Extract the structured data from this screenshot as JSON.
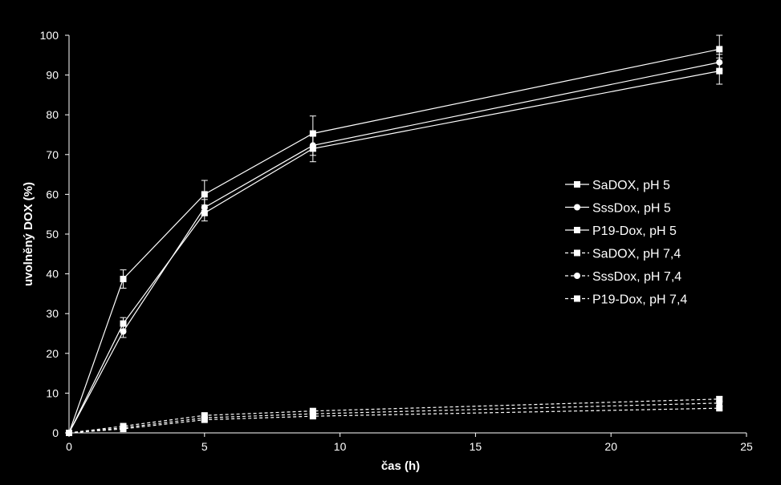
{
  "chart_data": {
    "type": "line",
    "title": "",
    "xlabel": "čas (h)",
    "ylabel": "uvolněný DOX (%)",
    "xlim": [
      0,
      25
    ],
    "ylim": [
      0,
      100
    ],
    "xticks": [
      0,
      5,
      10,
      15,
      20,
      25
    ],
    "yticks": [
      0,
      10,
      20,
      30,
      40,
      50,
      60,
      70,
      80,
      90,
      100
    ],
    "grid": false,
    "legend_position": "right",
    "colors": {
      "background": "#000000",
      "foreground": "#ffffff"
    },
    "x": [
      0,
      2,
      5,
      9,
      24
    ],
    "series": [
      {
        "name": "SaDOX, pH 5",
        "values": [
          0,
          38.7,
          60.0,
          75.3,
          96.5
        ],
        "error": [
          0,
          2.3,
          3.5,
          4.4,
          3.5
        ],
        "marker": "square",
        "dash": "solid"
      },
      {
        "name": "SssDox, pH 5",
        "values": [
          0,
          25.5,
          56.7,
          72.3,
          93.2
        ],
        "error": [
          0,
          1.5,
          2.0,
          2.5,
          2.0
        ],
        "marker": "circle",
        "dash": "solid"
      },
      {
        "name": "P19-Dox, pH 5",
        "values": [
          0,
          27.5,
          55.3,
          71.5,
          91.0
        ],
        "error": [
          0,
          1.5,
          2.0,
          3.3,
          3.3
        ],
        "marker": "square",
        "dash": "solid"
      },
      {
        "name": "SaDOX, pH 7,4",
        "values": [
          0,
          1.7,
          4.4,
          5.5,
          8.5
        ],
        "error": [
          0,
          0.3,
          0.4,
          0.5,
          0.6
        ],
        "marker": "square",
        "dash": "dashed"
      },
      {
        "name": "SssDox, pH 7,4",
        "values": [
          0,
          1.3,
          3.8,
          4.8,
          7.5
        ],
        "error": [
          0,
          0.3,
          0.4,
          0.4,
          0.5
        ],
        "marker": "circle",
        "dash": "dashed"
      },
      {
        "name": "P19-Dox, pH 7,4",
        "values": [
          0,
          1.0,
          3.3,
          4.2,
          6.2
        ],
        "error": [
          0,
          0.3,
          0.3,
          0.4,
          0.4
        ],
        "marker": "square",
        "dash": "dashed"
      }
    ]
  }
}
